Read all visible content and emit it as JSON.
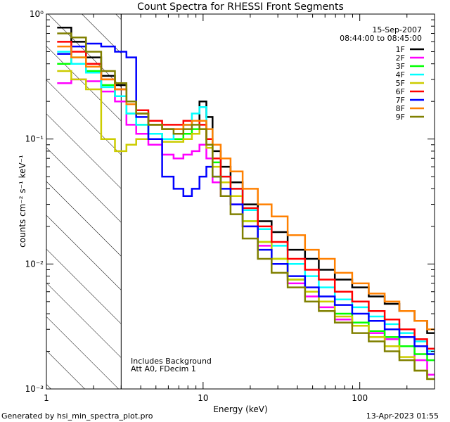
{
  "chart_data": {
    "type": "line",
    "title": "Count Spectra for RHESSI Front Segments",
    "xlabel": "Energy (keV)",
    "ylabel": "counts cm⁻² s⁻¹ keV⁻¹",
    "xscale": "log",
    "yscale": "log",
    "xlim": [
      1,
      300
    ],
    "ylim": [
      0.001,
      1
    ],
    "x_ticks": [
      {
        "value": 1,
        "label": "1"
      },
      {
        "value": 10,
        "label": "10"
      },
      {
        "value": 100,
        "label": "100"
      }
    ],
    "y_ticks": [
      {
        "value": 1,
        "label": "10⁰"
      },
      {
        "value": 0.1,
        "label": "10⁻¹"
      },
      {
        "value": 0.01,
        "label": "10⁻²"
      },
      {
        "value": 0.001,
        "label": "10⁻³"
      }
    ],
    "date": "15-Sep-2007",
    "time_range": "08:44:00 to 08:45:00",
    "hatched_region_xmax": 3,
    "annotations": [
      "Includes Background",
      "Att A0, FDecim 1"
    ],
    "footer_left": "Generated by hsi_min_spectra_plot.pro",
    "footer_right": "13-Apr-2023 01:55",
    "x": [
      1.3,
      1.6,
      2.0,
      2.5,
      3.0,
      3.5,
      4.0,
      5.0,
      6.0,
      7.0,
      8.0,
      9.0,
      10.0,
      11.0,
      12.0,
      14.0,
      16.0,
      20.0,
      25.0,
      30.0,
      40.0,
      50.0,
      60.0,
      80.0,
      100.0,
      130.0,
      160.0,
      200.0,
      250.0,
      290.0
    ],
    "series": [
      {
        "name": "1F",
        "color": "#000000",
        "values": [
          0.78,
          0.6,
          0.45,
          0.32,
          0.27,
          0.2,
          0.16,
          0.13,
          0.12,
          0.12,
          0.13,
          0.14,
          0.2,
          0.15,
          0.08,
          0.06,
          0.045,
          0.03,
          0.022,
          0.018,
          0.013,
          0.011,
          0.009,
          0.0075,
          0.0065,
          0.0055,
          0.0048,
          0.0042,
          0.0035,
          0.0028
        ]
      },
      {
        "name": "2F",
        "color": "#ff00ff",
        "values": [
          0.28,
          0.3,
          0.29,
          0.24,
          0.2,
          0.13,
          0.11,
          0.09,
          0.075,
          0.07,
          0.075,
          0.08,
          0.09,
          0.07,
          0.045,
          0.035,
          0.03,
          0.02,
          0.014,
          0.01,
          0.007,
          0.0055,
          0.0045,
          0.0036,
          0.0032,
          0.0028,
          0.0025,
          0.0022,
          0.0017,
          0.0013
        ]
      },
      {
        "name": "3F",
        "color": "#00ff00",
        "values": [
          0.4,
          0.45,
          0.35,
          0.27,
          0.22,
          0.16,
          0.13,
          0.11,
          0.1,
          0.1,
          0.11,
          0.12,
          0.14,
          0.1,
          0.065,
          0.045,
          0.035,
          0.022,
          0.015,
          0.011,
          0.0075,
          0.006,
          0.005,
          0.004,
          0.0034,
          0.0029,
          0.0026,
          0.0022,
          0.0019,
          0.0017
        ]
      },
      {
        "name": "4F",
        "color": "#00ffff",
        "values": [
          0.5,
          0.4,
          0.34,
          0.26,
          0.22,
          0.16,
          0.13,
          0.11,
          0.1,
          0.11,
          0.13,
          0.16,
          0.18,
          0.12,
          0.07,
          0.05,
          0.04,
          0.027,
          0.019,
          0.014,
          0.01,
          0.008,
          0.0065,
          0.0052,
          0.0045,
          0.0038,
          0.0033,
          0.0028,
          0.0024,
          0.002
        ]
      },
      {
        "name": "5F",
        "color": "#cccc00",
        "values": [
          0.35,
          0.3,
          0.25,
          0.1,
          0.08,
          0.09,
          0.1,
          0.1,
          0.095,
          0.095,
          0.1,
          0.11,
          0.12,
          0.085,
          0.06,
          0.045,
          0.035,
          0.022,
          0.015,
          0.011,
          0.0075,
          0.006,
          0.005,
          0.0038,
          0.0032,
          0.0026,
          0.0022,
          0.0018,
          0.0014,
          0.0012
        ]
      },
      {
        "name": "6F",
        "color": "#ff0000",
        "values": [
          0.6,
          0.5,
          0.4,
          0.3,
          0.25,
          0.2,
          0.17,
          0.14,
          0.13,
          0.13,
          0.14,
          0.14,
          0.13,
          0.1,
          0.07,
          0.05,
          0.04,
          0.028,
          0.02,
          0.015,
          0.011,
          0.009,
          0.0075,
          0.006,
          0.005,
          0.0042,
          0.0036,
          0.003,
          0.0025,
          0.0021
        ]
      },
      {
        "name": "7F",
        "color": "#0000ff",
        "values": [
          0.48,
          0.55,
          0.58,
          0.55,
          0.5,
          0.45,
          0.15,
          0.1,
          0.05,
          0.04,
          0.035,
          0.04,
          0.05,
          0.06,
          0.05,
          0.04,
          0.03,
          0.02,
          0.013,
          0.01,
          0.008,
          0.0065,
          0.0055,
          0.0047,
          0.004,
          0.0035,
          0.003,
          0.0026,
          0.0022,
          0.0019
        ]
      },
      {
        "name": "8F",
        "color": "#ff8000",
        "values": [
          0.55,
          0.45,
          0.38,
          0.3,
          0.25,
          0.19,
          0.16,
          0.13,
          0.12,
          0.12,
          0.13,
          0.14,
          0.14,
          0.12,
          0.09,
          0.07,
          0.055,
          0.04,
          0.03,
          0.024,
          0.017,
          0.013,
          0.011,
          0.0085,
          0.007,
          0.0058,
          0.005,
          0.0042,
          0.0035,
          0.003
        ]
      },
      {
        "name": "9F",
        "color": "#808000",
        "values": [
          0.7,
          0.65,
          0.5,
          0.35,
          0.28,
          0.2,
          0.16,
          0.13,
          0.12,
          0.11,
          0.12,
          0.13,
          0.12,
          0.09,
          0.05,
          0.035,
          0.025,
          0.016,
          0.011,
          0.0085,
          0.0065,
          0.005,
          0.0042,
          0.0034,
          0.0028,
          0.0024,
          0.002,
          0.0017,
          0.0014,
          0.0012
        ]
      }
    ]
  }
}
